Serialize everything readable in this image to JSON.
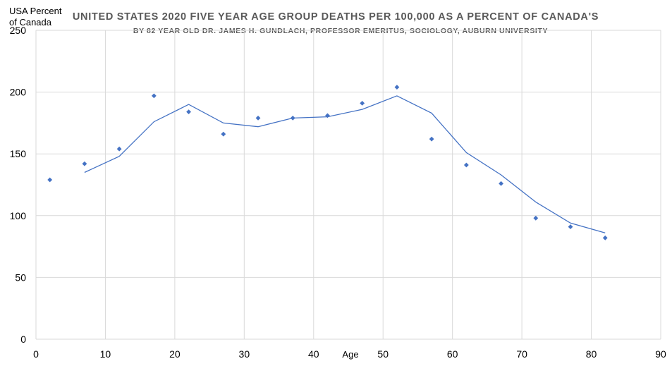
{
  "chart_data": {
    "type": "scatter",
    "title": "UNITED STATES 2020 FIVE YEAR AGE GROUP DEATHS PER 100,000 AS A PERCENT OF CANADA'S",
    "subtitle": "BY 82 YEAR OLD DR. JAMES H. GUNDLACH, PROFESSOR EMERITUS, SOCIOLOGY, AUBURN UNIVERSITY",
    "xlabel": "Age",
    "ylabel_line1": "USA Percent",
    "ylabel_line2": "of Canada",
    "xlim": [
      0,
      90
    ],
    "ylim": [
      0,
      250
    ],
    "xticks": [
      0,
      10,
      20,
      30,
      40,
      50,
      60,
      70,
      80,
      90
    ],
    "yticks": [
      0,
      50,
      100,
      150,
      200,
      250
    ],
    "grid": true,
    "colors": {
      "series": "#4472C4",
      "grid": "#d9d9d9",
      "title": "#595959"
    },
    "series": [
      {
        "type": "scatter",
        "marker": "diamond",
        "x": [
          2,
          7,
          12,
          17,
          22,
          27,
          32,
          37,
          42,
          47,
          52,
          57,
          62,
          67,
          72,
          77,
          82
        ],
        "y": [
          129,
          142,
          154,
          197,
          184,
          166,
          179,
          179,
          181,
          191,
          204,
          162,
          141,
          126,
          98,
          91,
          82
        ]
      },
      {
        "type": "line",
        "x": [
          7,
          12,
          17,
          22,
          27,
          32,
          37,
          42,
          47,
          52,
          57,
          62,
          67,
          72,
          77,
          82
        ],
        "y": [
          135,
          148,
          176,
          190,
          175,
          172,
          179,
          180,
          186,
          197,
          183,
          151,
          133,
          111,
          94,
          86
        ]
      }
    ]
  }
}
